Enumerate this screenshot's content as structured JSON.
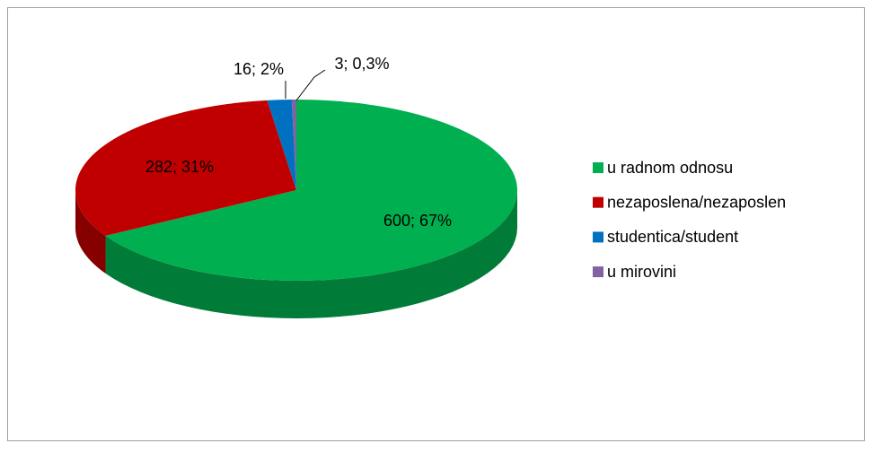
{
  "chart_data": {
    "type": "pie3d",
    "categories": [
      "u radnom odnosu",
      "nezaposlena/nezaposlen",
      "studentica/student",
      "u mirovini"
    ],
    "values": [
      600,
      282,
      16,
      3
    ],
    "value_labels": [
      "600; 67%",
      "282; 31%",
      "16; 2%",
      "3; 0,3%"
    ],
    "colors": [
      "#00b050",
      "#c00000",
      "#0070c0",
      "#8064a2"
    ],
    "legend": "right"
  }
}
